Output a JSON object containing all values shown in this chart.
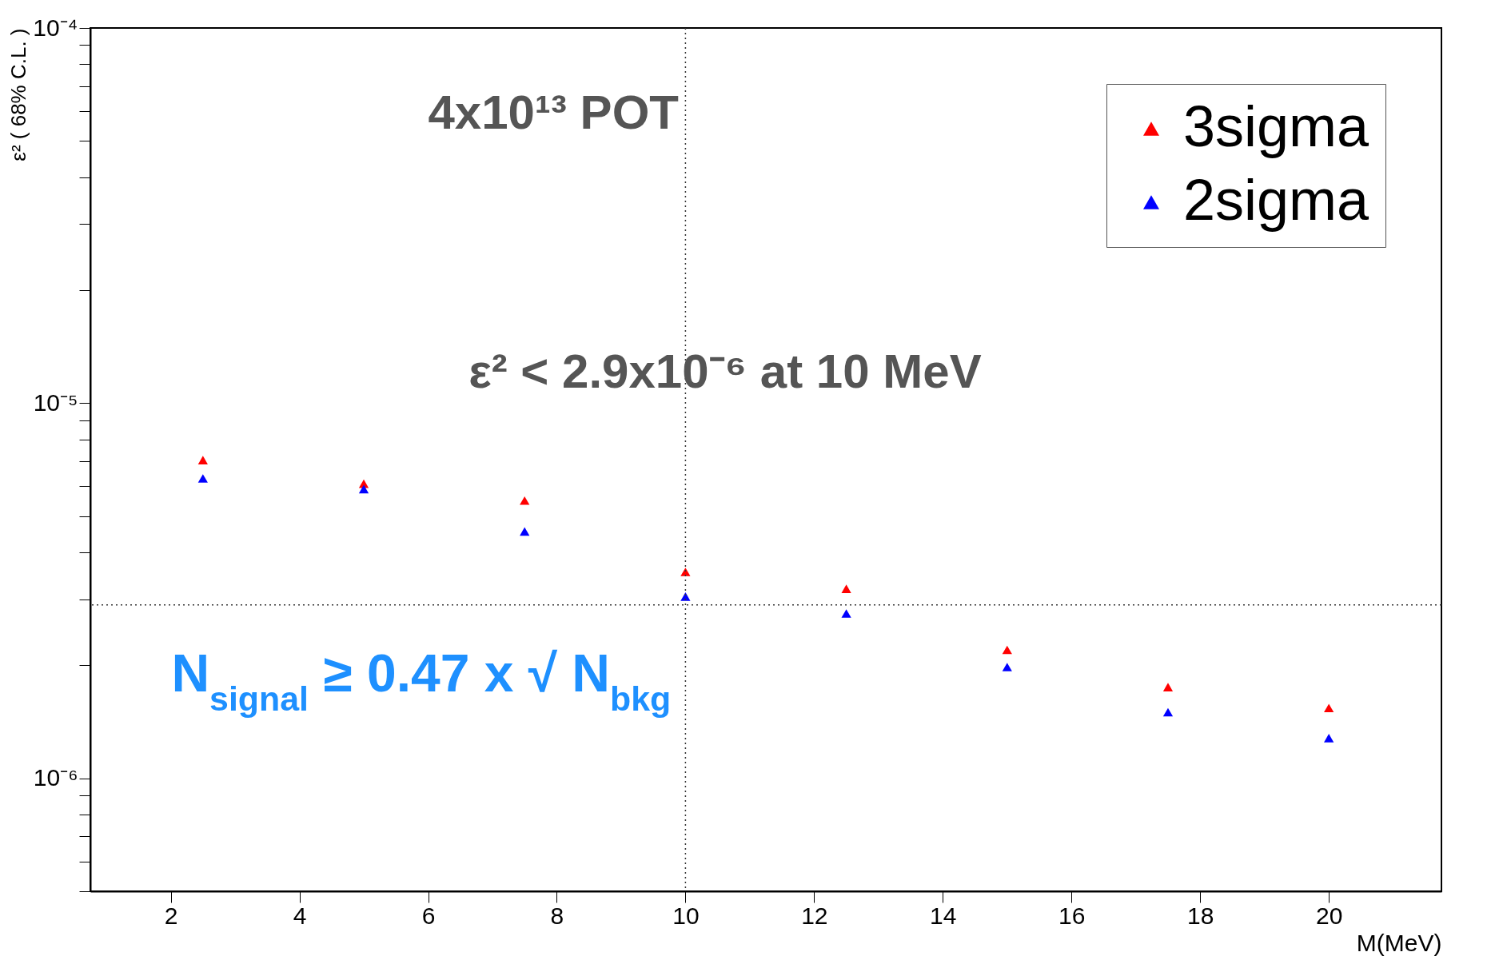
{
  "chart_data": {
    "type": "scatter",
    "xlabel": "M(MeV)",
    "ylabel": "ε² ( 68% C.L. )",
    "x": [
      2.5,
      5,
      7.5,
      10,
      12.5,
      15,
      17.5,
      20
    ],
    "series": [
      {
        "name": "3sigma",
        "color": "#ff0000",
        "values": [
          7.05e-06,
          6.1e-06,
          5.5e-06,
          3.55e-06,
          3.2e-06,
          2.2e-06,
          1.75e-06,
          1.54e-06
        ]
      },
      {
        "name": "2sigma",
        "color": "#0000ff",
        "values": [
          6.3e-06,
          5.9e-06,
          4.55e-06,
          3.05e-06,
          2.75e-06,
          1.98e-06,
          1.5e-06,
          1.28e-06
        ]
      }
    ],
    "log": "y",
    "xlim": [
      0.75,
      21.75
    ],
    "ylim": [
      5e-07,
      0.0001
    ],
    "xticks": [
      2,
      4,
      6,
      8,
      10,
      12,
      14,
      16,
      18,
      20
    ],
    "yticks": [
      {
        "value": 5e-07,
        "label": null
      },
      {
        "value": 6e-07,
        "label": null
      },
      {
        "value": 7e-07,
        "label": null
      },
      {
        "value": 8e-07,
        "label": null
      },
      {
        "value": 9e-07,
        "label": null
      },
      {
        "value": 1e-06,
        "label": "10⁻⁶"
      },
      {
        "value": 2e-06,
        "label": null
      },
      {
        "value": 3e-06,
        "label": null
      },
      {
        "value": 4e-06,
        "label": null
      },
      {
        "value": 5e-06,
        "label": null
      },
      {
        "value": 6e-06,
        "label": null
      },
      {
        "value": 7e-06,
        "label": null
      },
      {
        "value": 8e-06,
        "label": null
      },
      {
        "value": 9e-06,
        "label": null
      },
      {
        "value": 1e-05,
        "label": "10⁻⁵"
      },
      {
        "value": 2e-05,
        "label": null
      },
      {
        "value": 3e-05,
        "label": null
      },
      {
        "value": 4e-05,
        "label": null
      },
      {
        "value": 5e-05,
        "label": null
      },
      {
        "value": 6e-05,
        "label": null
      },
      {
        "value": 7e-05,
        "label": null
      },
      {
        "value": 8e-05,
        "label": null
      },
      {
        "value": 9e-05,
        "label": null
      },
      {
        "value": 0.0001,
        "label": "10⁻⁴"
      }
    ],
    "ref_lines": [
      {
        "axis": "y",
        "value": 2.9e-06,
        "line_style": "dotted"
      },
      {
        "axis": "x",
        "value": 10,
        "line_style": "dotted"
      }
    ],
    "annotations": [
      "4x10¹³ POT",
      "ε² < 2.9x10⁻⁶ at 10 MeV",
      "N$_{signal}$ ≥ 0.47 x √ N$_{bkg}$"
    ],
    "marker": "triangle",
    "legend": "top right",
    "grid": false
  }
}
